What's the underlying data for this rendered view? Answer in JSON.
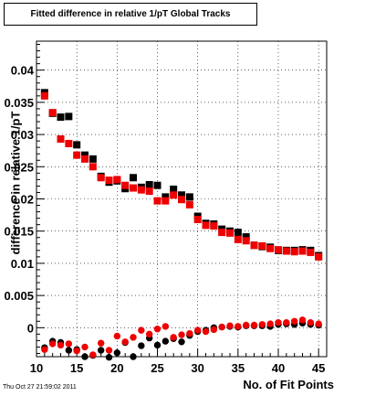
{
  "title": "Fitted difference in relative 1/pT  Global Tracks",
  "timestamp": "Thu Oct 27 21:59:02 2011",
  "chart_data": {
    "type": "scatter",
    "title": "Fitted difference in relative 1/pT  Global Tracks",
    "xlabel": "No. of Fit Points",
    "ylabel": "difference in relative 1/pT",
    "xlim": [
      10,
      46
    ],
    "ylim": [
      -0.0045,
      0.0445
    ],
    "grid": true,
    "x_ticks": [
      10,
      15,
      20,
      25,
      30,
      35,
      40,
      45
    ],
    "y_ticks": [
      0,
      0.005,
      0.01,
      0.015,
      0.02,
      0.025,
      0.03,
      0.035,
      0.04
    ],
    "x_tick_labels": [
      "10",
      "15",
      "20",
      "25",
      "30",
      "35",
      "40",
      "45"
    ],
    "y_tick_labels": [
      "0",
      "0.005",
      "0.01",
      "0.015",
      "0.02",
      "0.025",
      "0.03",
      "0.035",
      "0.04"
    ],
    "series": [
      {
        "marker": "square",
        "color": "#000000",
        "x": [
          11,
          12,
          13,
          14,
          15,
          16,
          17,
          18,
          19,
          20,
          21,
          22,
          23,
          24,
          25,
          26,
          27,
          28,
          29,
          30,
          31,
          32,
          33,
          34,
          35,
          36,
          37,
          38,
          39,
          40,
          41,
          42,
          43,
          44,
          45
        ],
        "y": [
          0.0365,
          0.0333,
          0.0327,
          0.0328,
          0.0284,
          0.0268,
          0.0262,
          0.0235,
          0.0226,
          0.0228,
          0.0216,
          0.0233,
          0.0218,
          0.0222,
          0.0221,
          0.0203,
          0.0215,
          0.0206,
          0.0203,
          0.0173,
          0.0162,
          0.0161,
          0.0153,
          0.015,
          0.0148,
          0.0141,
          0.0128,
          0.0126,
          0.0125,
          0.012,
          0.012,
          0.012,
          0.0121,
          0.012,
          0.0112
        ]
      },
      {
        "marker": "square",
        "color": "#ee0000",
        "x": [
          11,
          12,
          13,
          14,
          15,
          16,
          17,
          18,
          19,
          20,
          21,
          22,
          23,
          24,
          25,
          26,
          27,
          28,
          29,
          30,
          31,
          32,
          33,
          34,
          35,
          36,
          37,
          38,
          39,
          40,
          41,
          42,
          43,
          44,
          45
        ],
        "y": [
          0.036,
          0.0334,
          0.0293,
          0.0286,
          0.0268,
          0.0262,
          0.025,
          0.0233,
          0.0229,
          0.023,
          0.0221,
          0.0217,
          0.0214,
          0.0212,
          0.0197,
          0.0197,
          0.0206,
          0.0199,
          0.0191,
          0.0168,
          0.0159,
          0.0158,
          0.0148,
          0.0147,
          0.0137,
          0.0135,
          0.0128,
          0.0127,
          0.0123,
          0.0121,
          0.0119,
          0.0118,
          0.0119,
          0.0117,
          0.011
        ]
      },
      {
        "marker": "circle",
        "color": "#000000",
        "x": [
          11,
          12,
          13,
          14,
          15,
          16,
          17,
          18,
          19,
          20,
          21,
          22,
          23,
          24,
          25,
          26,
          27,
          28,
          29,
          30,
          31,
          32,
          33,
          34,
          35,
          36,
          37,
          38,
          39,
          40,
          41,
          42,
          43,
          44,
          45
        ],
        "y": [
          -0.0031,
          -0.0021,
          -0.0023,
          -0.0035,
          -0.0034,
          -0.0045,
          -0.0043,
          -0.0035,
          -0.0046,
          -0.0039,
          -0.0023,
          -0.0045,
          -0.0028,
          -0.0016,
          -0.0027,
          -0.0021,
          -0.0017,
          -0.0022,
          -0.0012,
          -0.0006,
          -0.0004,
          0.0,
          0.0001,
          0.0002,
          0.0001,
          0.0003,
          0.0003,
          0.0003,
          0.0002,
          0.0005,
          0.0006,
          0.0005,
          0.0007,
          0.0005,
          0.0004
        ]
      },
      {
        "marker": "circle",
        "color": "#ee0000",
        "x": [
          11,
          12,
          13,
          14,
          15,
          16,
          17,
          18,
          19,
          20,
          21,
          22,
          23,
          24,
          25,
          26,
          27,
          28,
          29,
          30,
          31,
          32,
          33,
          34,
          35,
          36,
          37,
          38,
          39,
          40,
          41,
          42,
          43,
          44,
          45
        ],
        "y": [
          -0.0034,
          -0.0025,
          -0.0027,
          -0.0025,
          -0.0036,
          -0.003,
          -0.0042,
          -0.0024,
          -0.0035,
          -0.0013,
          -0.0022,
          -0.0015,
          -0.0004,
          -0.001,
          -0.0002,
          0.0002,
          -0.0015,
          -0.0011,
          -0.0009,
          -0.0004,
          -0.0006,
          -0.0003,
          0.0001,
          0.0003,
          0.0002,
          0.0004,
          0.0004,
          0.0005,
          0.0006,
          0.0008,
          0.0008,
          0.001,
          0.0012,
          0.0008,
          0.0006
        ]
      }
    ]
  }
}
